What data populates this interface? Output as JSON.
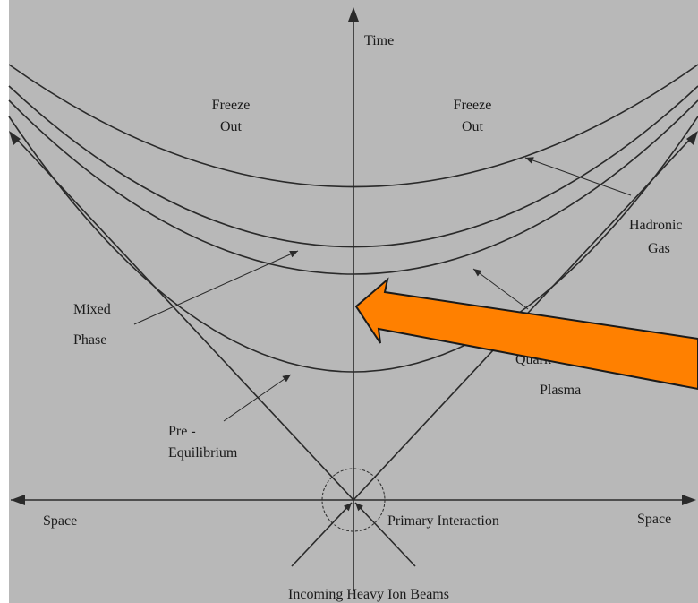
{
  "colors": {
    "background": "#b8b8b8",
    "line": "#2a2a2a",
    "arrow_fill": "#ff8000",
    "arrow_outline": "#1a1a1a"
  },
  "labels": {
    "time": "Time",
    "freeze_out_left_1": "Freeze",
    "freeze_out_left_2": "Out",
    "freeze_out_right_1": "Freeze",
    "freeze_out_right_2": "Out",
    "hadronic_1": "Hadronic",
    "hadronic_2": "Gas",
    "mixed_1": "Mixed",
    "mixed_2": "Phase",
    "qgp_1": "Quark",
    "qgp_2": "Plasma",
    "pre_1": "Pre -",
    "pre_2": "Equilibrium",
    "space_left": "Space",
    "space_right": "Space",
    "primary": "Primary Interaction",
    "beams": "Incoming Heavy Ion Beams"
  },
  "overlay": {
    "highlight_arrow_icon": "orange-pointer-arrow"
  }
}
